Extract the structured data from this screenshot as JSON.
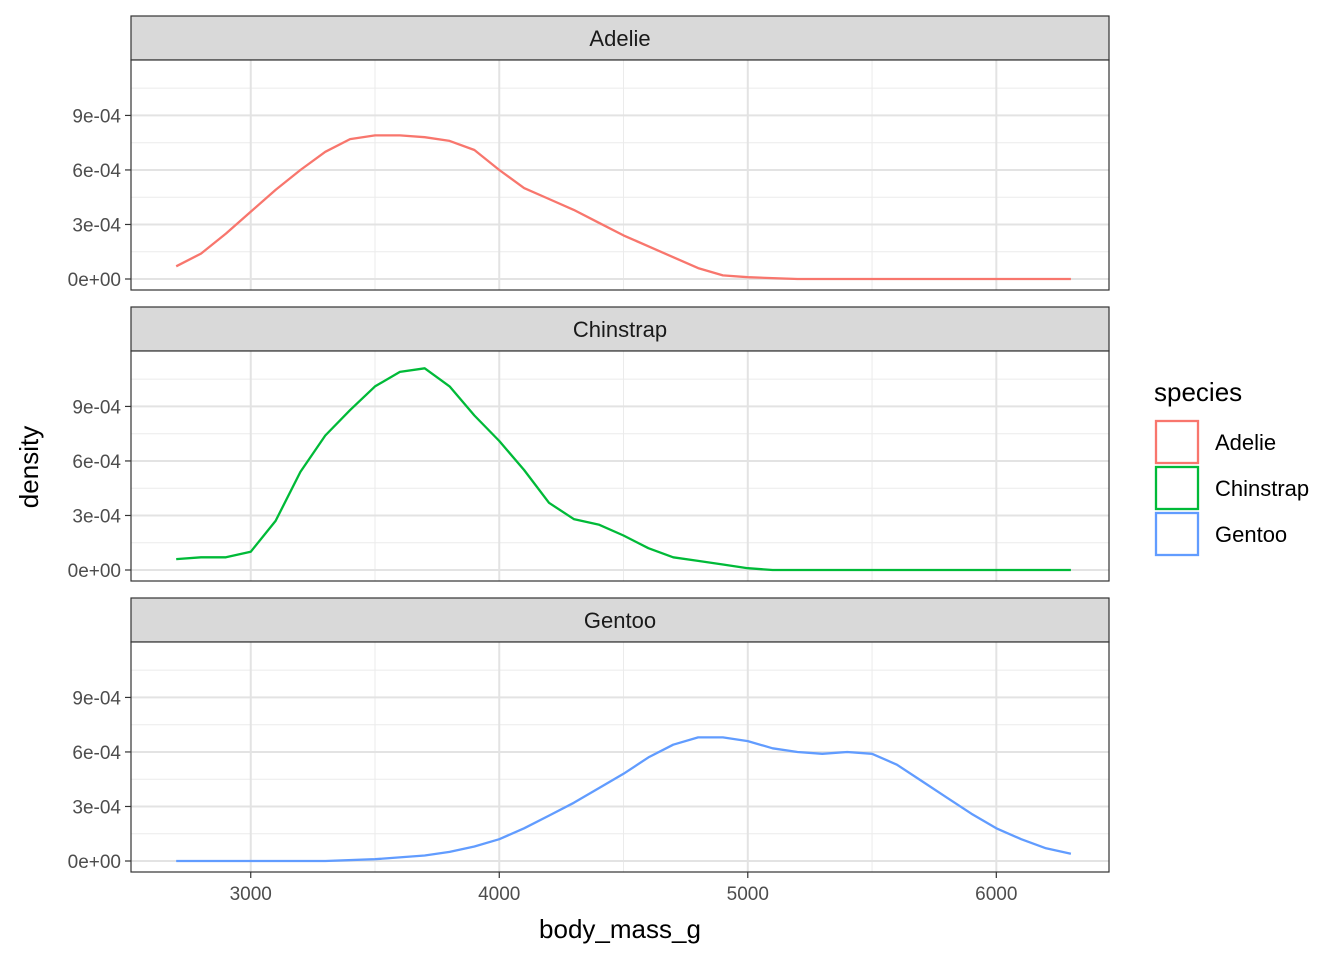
{
  "chart_data": {
    "type": "line",
    "subtype": "density",
    "facet_by": "species",
    "xlabel": "body_mass_g",
    "ylabel": "density",
    "xlim": [
      2700,
      6300
    ],
    "ylim": [
      0,
      0.00115
    ],
    "x_ticks": [
      3000,
      4000,
      5000,
      6000
    ],
    "x_tick_labels": [
      "3000",
      "4000",
      "5000",
      "6000"
    ],
    "y_ticks": [
      0,
      0.0003,
      0.0006,
      0.0009
    ],
    "y_tick_labels": [
      "0e+00",
      "3e-04",
      "6e-04",
      "9e-04"
    ],
    "grid": true,
    "legend": {
      "title": "species",
      "position": "right",
      "entries": [
        "Adelie",
        "Chinstrap",
        "Gentoo"
      ]
    },
    "series": [
      {
        "name": "Adelie",
        "color": "#F8766D",
        "x": [
          2700,
          2800,
          2900,
          3000,
          3100,
          3200,
          3300,
          3400,
          3500,
          3600,
          3700,
          3800,
          3900,
          4000,
          4100,
          4200,
          4300,
          4400,
          4500,
          4600,
          4700,
          4800,
          4900,
          5000,
          5200,
          5400,
          5600,
          5800,
          6000,
          6300
        ],
        "y": [
          7e-05,
          0.00014,
          0.00025,
          0.00037,
          0.00049,
          0.0006,
          0.0007,
          0.00077,
          0.00079,
          0.00079,
          0.00078,
          0.00076,
          0.00071,
          0.0006,
          0.0005,
          0.00044,
          0.00038,
          0.00031,
          0.00024,
          0.00018,
          0.00012,
          6e-05,
          2e-05,
          1e-05,
          0.0,
          0.0,
          0.0,
          0.0,
          0.0,
          0.0
        ]
      },
      {
        "name": "Chinstrap",
        "color": "#00BA38",
        "x": [
          2700,
          2800,
          2900,
          3000,
          3100,
          3200,
          3300,
          3400,
          3500,
          3600,
          3700,
          3800,
          3900,
          4000,
          4100,
          4200,
          4300,
          4400,
          4500,
          4600,
          4700,
          4800,
          4900,
          5000,
          5100,
          5200,
          5400,
          5600,
          5800,
          6000,
          6300
        ],
        "y": [
          6e-05,
          7e-05,
          7e-05,
          0.0001,
          0.00027,
          0.00054,
          0.00074,
          0.00088,
          0.00101,
          0.00109,
          0.00111,
          0.00101,
          0.00085,
          0.00071,
          0.00055,
          0.00037,
          0.00028,
          0.00025,
          0.00019,
          0.00012,
          7e-05,
          5e-05,
          3e-05,
          1e-05,
          0.0,
          0.0,
          0.0,
          0.0,
          0.0,
          0.0,
          0.0
        ]
      },
      {
        "name": "Gentoo",
        "color": "#619CFF",
        "x": [
          2700,
          3000,
          3300,
          3500,
          3700,
          3800,
          3900,
          4000,
          4100,
          4200,
          4300,
          4400,
          4500,
          4600,
          4700,
          4800,
          4900,
          5000,
          5100,
          5200,
          5300,
          5400,
          5500,
          5600,
          5700,
          5800,
          5900,
          6000,
          6100,
          6200,
          6300
        ],
        "y": [
          0.0,
          0.0,
          0.0,
          1e-05,
          3e-05,
          5e-05,
          8e-05,
          0.00012,
          0.00018,
          0.00025,
          0.00032,
          0.0004,
          0.00048,
          0.00057,
          0.00064,
          0.00068,
          0.00068,
          0.00066,
          0.00062,
          0.0006,
          0.00059,
          0.0006,
          0.00059,
          0.00053,
          0.00044,
          0.00035,
          0.00026,
          0.00018,
          0.00012,
          7e-05,
          4e-05
        ]
      }
    ]
  }
}
